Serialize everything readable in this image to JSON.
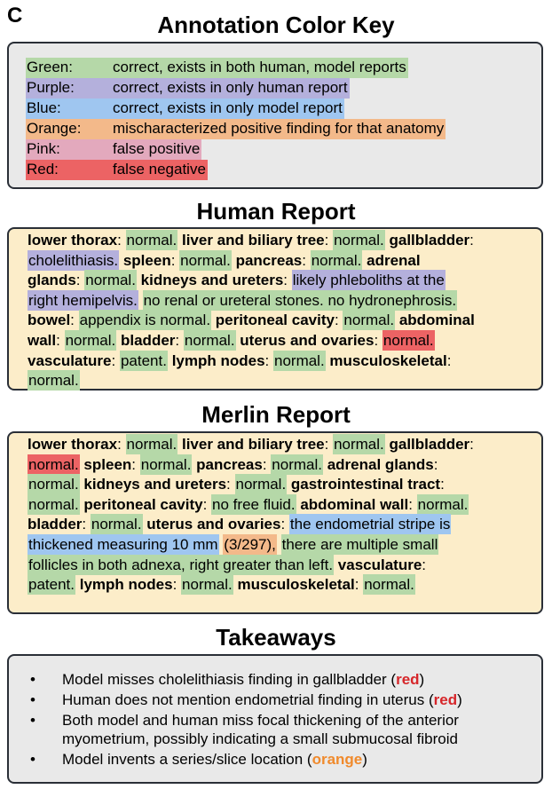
{
  "panel_label": "C",
  "key": {
    "title": "Annotation Color Key",
    "rows": [
      {
        "name": "Green:",
        "desc": "correct, exists in both human, model reports",
        "color": "#b5d8a8"
      },
      {
        "name": "Purple:",
        "desc": "correct, exists in only human report",
        "color": "#b4b0dc"
      },
      {
        "name": "Blue:",
        "desc": "correct, exists in only model report",
        "color": "#9fc6f0"
      },
      {
        "name": "Orange:",
        "desc": "mischaracterized positive finding for that anatomy",
        "color": "#f3b98a"
      },
      {
        "name": "Pink:",
        "desc": "false positive",
        "color": "#e3a9bd"
      },
      {
        "name": "Red:",
        "desc": "false negative",
        "color": "#ec6364"
      }
    ]
  },
  "human": {
    "title": "Human Report",
    "lines": [
      [
        {
          "t": "lower thorax",
          "b": true
        },
        {
          "t": ": "
        },
        {
          "t": "normal.",
          "h": "green"
        },
        {
          "t": "  "
        },
        {
          "t": "liver and biliary tree",
          "b": true
        },
        {
          "t": ": "
        },
        {
          "t": "normal.",
          "h": "green"
        },
        {
          "t": " "
        },
        {
          "t": "gallbladder",
          "b": true
        },
        {
          "t": ":"
        }
      ],
      [
        {
          "t": "cholelithiasis.",
          "h": "purple"
        },
        {
          "t": " "
        },
        {
          "t": "spleen",
          "b": true
        },
        {
          "t": ": "
        },
        {
          "t": "normal.",
          "h": "green"
        },
        {
          "t": " "
        },
        {
          "t": "pancreas",
          "b": true
        },
        {
          "t": ": "
        },
        {
          "t": "normal.",
          "h": "green"
        },
        {
          "t": "  "
        },
        {
          "t": "adrenal",
          "b": true
        }
      ],
      [
        {
          "t": "glands",
          "b": true
        },
        {
          "t": ": "
        },
        {
          "t": "normal.",
          "h": "green"
        },
        {
          "t": " "
        },
        {
          "t": "kidneys and ureters",
          "b": true
        },
        {
          "t": ": "
        },
        {
          "t": "likely phleboliths at the",
          "h": "purple"
        }
      ],
      [
        {
          "t": "right hemipelvis.",
          "h": "purple"
        },
        {
          "t": " "
        },
        {
          "t": "no renal or ureteral stones. no hydronephrosis.",
          "h": "green"
        }
      ],
      [
        {
          "t": "bowel",
          "b": true
        },
        {
          "t": ": "
        },
        {
          "t": "appendix is normal.",
          "h": "green"
        },
        {
          "t": " "
        },
        {
          "t": "peritoneal cavity",
          "b": true
        },
        {
          "t": ": "
        },
        {
          "t": "normal.",
          "h": "green"
        },
        {
          "t": " "
        },
        {
          "t": "abdominal",
          "b": true
        }
      ],
      [
        {
          "t": "wall",
          "b": true
        },
        {
          "t": ": "
        },
        {
          "t": "normal.",
          "h": "green"
        },
        {
          "t": " "
        },
        {
          "t": "bladder",
          "b": true
        },
        {
          "t": ": "
        },
        {
          "t": "normal.",
          "h": "green"
        },
        {
          "t": " "
        },
        {
          "t": "uterus and ovaries",
          "b": true
        },
        {
          "t": ": "
        },
        {
          "t": "normal.",
          "h": "red"
        }
      ],
      [
        {
          "t": "vasculature",
          "b": true
        },
        {
          "t": ": "
        },
        {
          "t": "patent.",
          "h": "green"
        },
        {
          "t": " "
        },
        {
          "t": "lymph nodes",
          "b": true
        },
        {
          "t": ": "
        },
        {
          "t": "normal.",
          "h": "green"
        },
        {
          "t": " "
        },
        {
          "t": "musculoskeletal",
          "b": true
        },
        {
          "t": ":"
        }
      ],
      [
        {
          "t": "normal.",
          "h": "green"
        }
      ]
    ]
  },
  "merlin": {
    "title": "Merlin Report",
    "lines": [
      [
        {
          "t": "lower thorax",
          "b": true
        },
        {
          "t": ": "
        },
        {
          "t": "normal.",
          "h": "green"
        },
        {
          "t": " "
        },
        {
          "t": "liver and biliary tree",
          "b": true
        },
        {
          "t": ": "
        },
        {
          "t": "normal.",
          "h": "green"
        },
        {
          "t": " "
        },
        {
          "t": "gallbladder",
          "b": true
        },
        {
          "t": ":"
        }
      ],
      [
        {
          "t": "normal.",
          "h": "red"
        },
        {
          "t": " "
        },
        {
          "t": "spleen",
          "b": true
        },
        {
          "t": ": "
        },
        {
          "t": "normal.",
          "h": "green"
        },
        {
          "t": " "
        },
        {
          "t": "pancreas",
          "b": true
        },
        {
          "t": ": "
        },
        {
          "t": "normal.",
          "h": "green"
        },
        {
          "t": " "
        },
        {
          "t": "adrenal glands",
          "b": true
        },
        {
          "t": ":"
        }
      ],
      [
        {
          "t": "normal.",
          "h": "green"
        },
        {
          "t": " "
        },
        {
          "t": "kidneys and ureters",
          "b": true
        },
        {
          "t": ": "
        },
        {
          "t": "normal.",
          "h": "green"
        },
        {
          "t": " "
        },
        {
          "t": "gastrointestinal tract",
          "b": true
        },
        {
          "t": ":"
        }
      ],
      [
        {
          "t": "normal.",
          "h": "green"
        },
        {
          "t": " "
        },
        {
          "t": "peritoneal cavity",
          "b": true
        },
        {
          "t": ": "
        },
        {
          "t": "no free fluid.",
          "h": "green"
        },
        {
          "t": " "
        },
        {
          "t": "abdominal wall",
          "b": true
        },
        {
          "t": ": "
        },
        {
          "t": "normal.",
          "h": "green"
        }
      ],
      [
        {
          "t": "bladder",
          "b": true
        },
        {
          "t": ": "
        },
        {
          "t": "normal.",
          "h": "green"
        },
        {
          "t": " "
        },
        {
          "t": "uterus and ovaries",
          "b": true
        },
        {
          "t": ": "
        },
        {
          "t": "the endometrial stripe is",
          "h": "blue"
        }
      ],
      [
        {
          "t": "thickened measuring 10 mm",
          "h": "blue"
        },
        {
          "t": " "
        },
        {
          "t": "(3/297),",
          "h": "orange"
        },
        {
          "t": " "
        },
        {
          "t": "there are multiple small",
          "h": "green"
        }
      ],
      [
        {
          "t": "follicles in both adnexa, right greater than left.",
          "h": "green"
        },
        {
          "t": " "
        },
        {
          "t": "vasculature",
          "b": true
        },
        {
          "t": ":"
        }
      ],
      [
        {
          "t": "patent.",
          "h": "green"
        },
        {
          "t": " "
        },
        {
          "t": "lymph nodes",
          "b": true
        },
        {
          "t": ": "
        },
        {
          "t": "normal.",
          "h": "green"
        },
        {
          "t": " "
        },
        {
          "t": "musculoskeletal",
          "b": true
        },
        {
          "t": ": "
        },
        {
          "t": "normal.",
          "h": "green"
        }
      ]
    ]
  },
  "takeaways": {
    "title": "Takeaways",
    "bullet": "•",
    "items": [
      [
        {
          "t": "Model misses cholelithiasis finding in gallbladder ("
        },
        {
          "t": "red",
          "c": "red"
        },
        {
          "t": ")"
        }
      ],
      [
        {
          "t": "Human does not mention endometrial finding in uterus ("
        },
        {
          "t": "red",
          "c": "red"
        },
        {
          "t": ")"
        }
      ],
      [
        {
          "t": "Both model and human miss focal thickening of the anterior myometrium, possibly indicating a small submucosal fibroid"
        }
      ],
      [
        {
          "t": "Model invents a series/slice location ("
        },
        {
          "t": "orange",
          "c": "orange"
        },
        {
          "t": ")"
        }
      ]
    ]
  }
}
